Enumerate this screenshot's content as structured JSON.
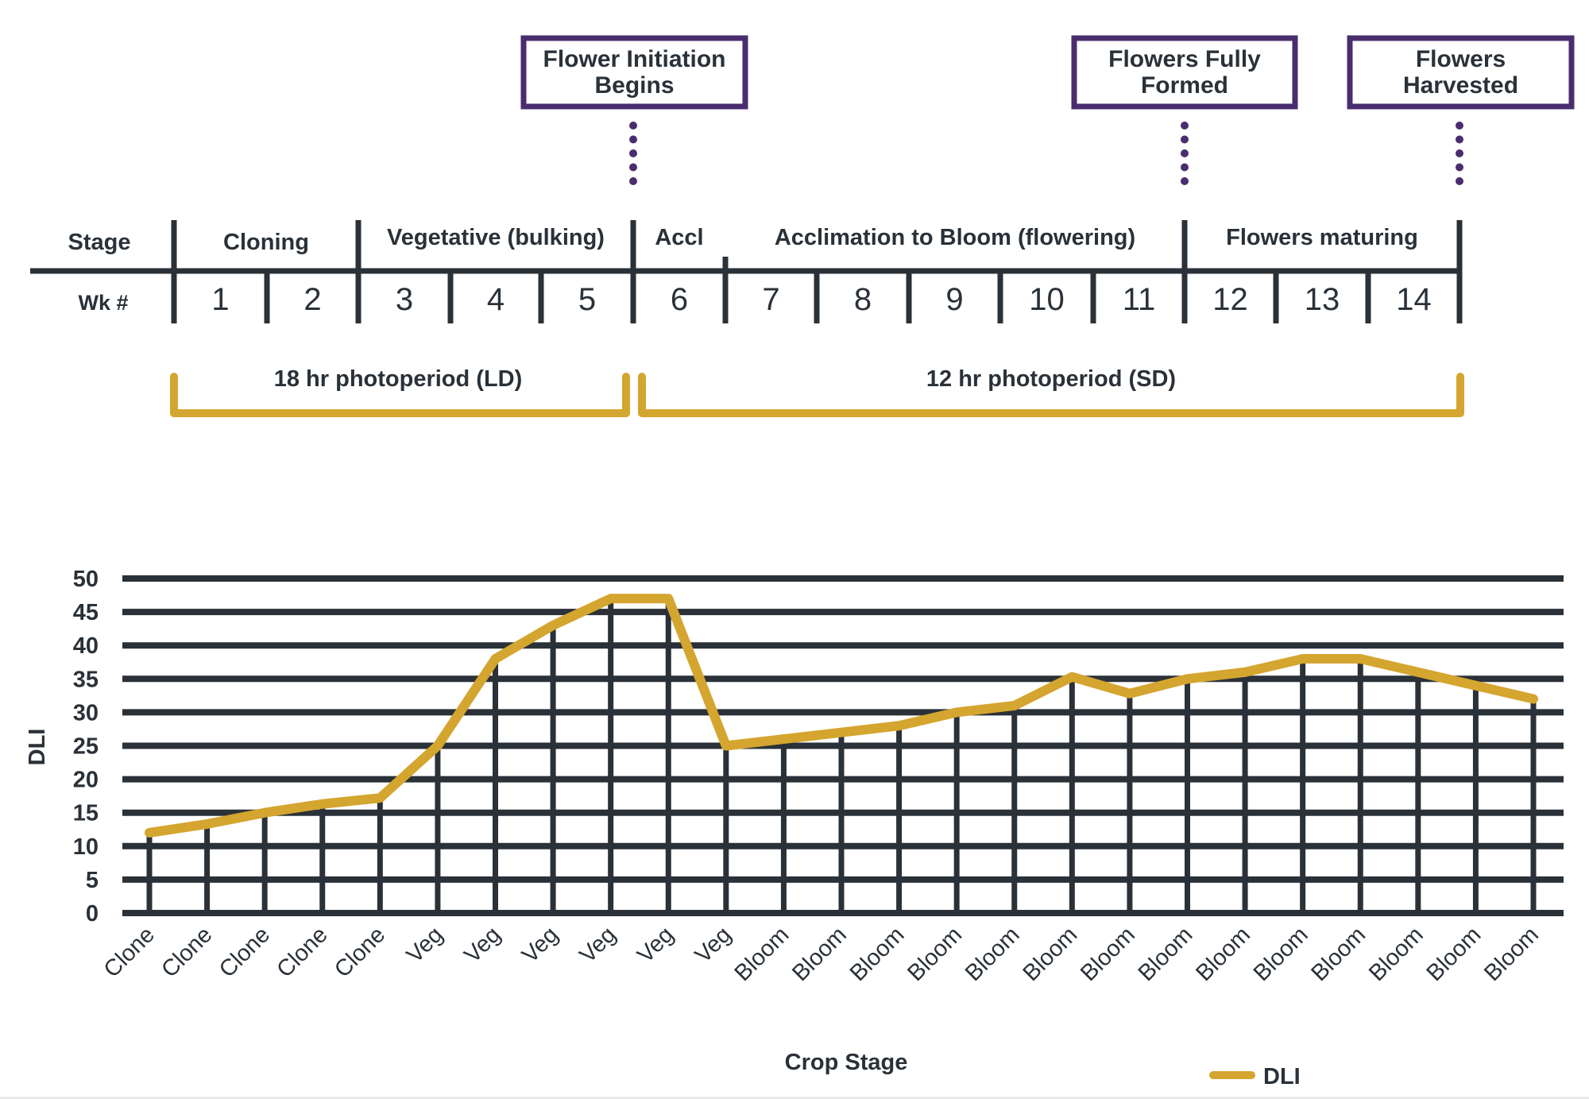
{
  "colors": {
    "ink": "#2a3138",
    "line": "#d4a52f",
    "milestone": "#4a2d6e"
  },
  "milestones": [
    {
      "lines": [
        "Flower Initiation",
        "Begins"
      ]
    },
    {
      "lines": [
        "Flowers Fully",
        "Formed"
      ]
    },
    {
      "lines": [
        "Flowers",
        "Harvested"
      ]
    }
  ],
  "timeline": {
    "stage_label": "Stage",
    "week_label": "Wk #",
    "stages": [
      "Cloning",
      "Vegetative (bulking)",
      "Accl",
      "Acclimation to Bloom (flowering)",
      "Flowers maturing"
    ],
    "weeks": [
      "1",
      "2",
      "3",
      "4",
      "5",
      "6",
      "7",
      "8",
      "9",
      "10",
      "11",
      "12",
      "13",
      "14"
    ]
  },
  "photoperiods": [
    "18 hr photoperiod (LD)",
    "12 hr photoperiod (SD)"
  ],
  "chart_data": {
    "type": "line",
    "title": "",
    "xlabel": "Crop Stage",
    "ylabel": "DLI",
    "ylim": [
      0,
      50
    ],
    "yticks": [
      0,
      5,
      10,
      15,
      20,
      25,
      30,
      35,
      40,
      45,
      50
    ],
    "grid": true,
    "legend_position": "bottom-right",
    "categories": [
      "Clone",
      "Clone",
      "Clone",
      "Clone",
      "Clone",
      "Veg",
      "Veg",
      "Veg",
      "Veg",
      "Veg",
      "Veg",
      "Bloom",
      "Bloom",
      "Bloom",
      "Bloom",
      "Bloom",
      "Bloom",
      "Bloom",
      "Bloom",
      "Bloom",
      "Bloom",
      "Bloom",
      "Bloom",
      "Bloom",
      "Bloom"
    ],
    "series": [
      {
        "name": "DLI",
        "values": [
          12,
          13.3,
          15,
          16.3,
          17.2,
          25,
          38,
          43,
          47,
          47,
          25,
          26,
          27,
          28,
          30,
          31,
          35.3,
          32.8,
          35,
          36,
          38,
          38,
          36,
          34,
          32
        ]
      }
    ]
  }
}
